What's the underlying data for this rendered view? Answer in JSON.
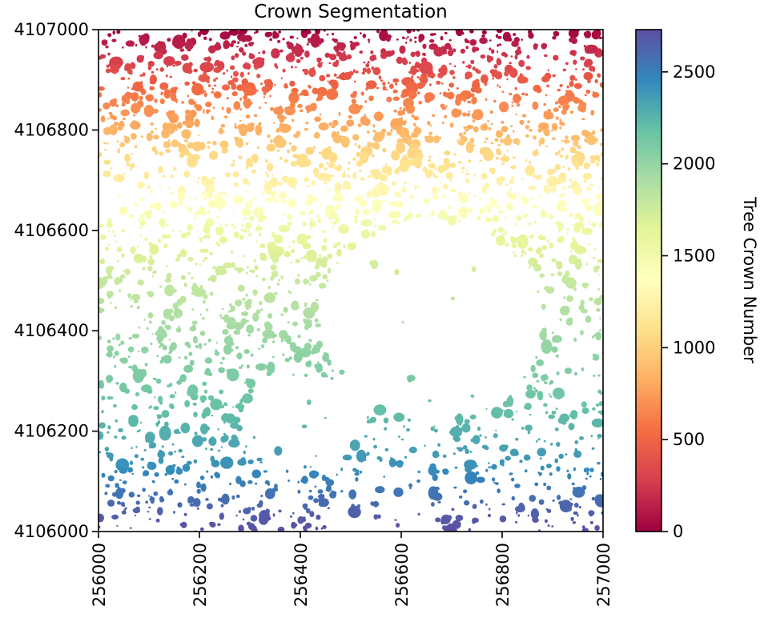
{
  "chart_data": {
    "type": "scatter",
    "title": "Crown Segmentation",
    "xlabel": "",
    "ylabel": "",
    "xlim": [
      256000,
      257000
    ],
    "ylim": [
      4106000,
      4107000
    ],
    "x_ticks": [
      "256000",
      "256200",
      "256400",
      "256600",
      "256800",
      "257000"
    ],
    "y_ticks": [
      "4106000",
      "4106200",
      "4106400",
      "4106600",
      "4106800",
      "4107000"
    ],
    "grid": false,
    "colormap": "Spectral",
    "colormap_stops": [
      "#9e0142",
      "#d53e4f",
      "#f46d43",
      "#fdae61",
      "#fee08b",
      "#ffffbf",
      "#e6f598",
      "#abdda4",
      "#66c2a5",
      "#3288bd",
      "#5e4fa2"
    ],
    "colorbar": {
      "label": "Tree Crown Number",
      "range": [
        0,
        2730
      ],
      "ticks": [
        "0",
        "500",
        "1000",
        "1500",
        "2000",
        "2500"
      ],
      "position": "right"
    },
    "points_description_value_range": [
      0,
      2730
    ]
  }
}
